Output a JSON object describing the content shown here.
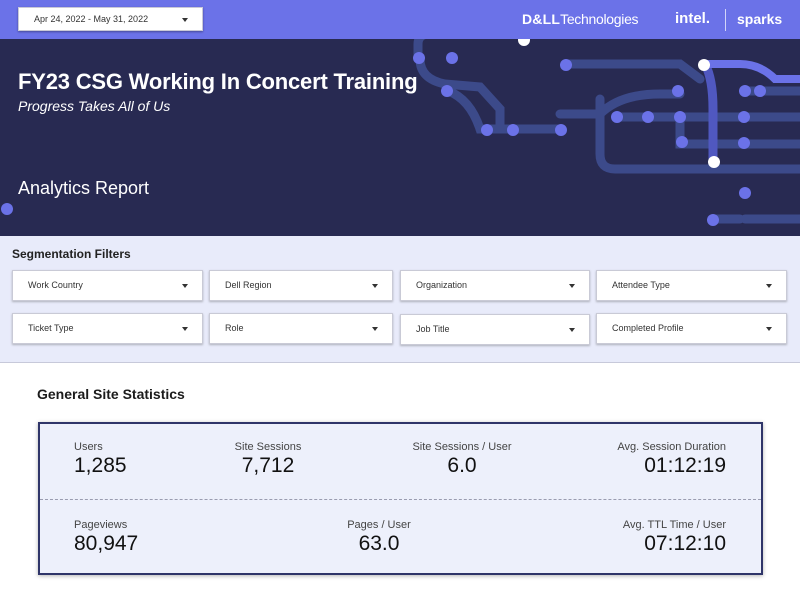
{
  "topbar": {
    "date_range": "Apr 24, 2022 - May 31, 2022",
    "brand_dell_bold": "D&LL",
    "brand_dell_rest": "Technologies",
    "brand_intel": "intel.",
    "brand_sparks": "sparks"
  },
  "hero": {
    "title": "FY23 CSG Working In Concert Training",
    "subtitle": "Progress Takes All of Us",
    "report": "Analytics Report"
  },
  "filters": {
    "title": "Segmentation Filters",
    "items": [
      "Work Country",
      "Dell Region",
      "Organization",
      "Attendee Type",
      "Ticket Type",
      "Role",
      "Job Title",
      "Completed Profile"
    ]
  },
  "stats": {
    "title": "General Site Statistics",
    "row1": [
      {
        "label": "Users",
        "value": "1,285"
      },
      {
        "label": "Site Sessions",
        "value": "7,712"
      },
      {
        "label": "Site Sessions / User",
        "value": "6.0"
      },
      {
        "label": "Avg. Session Duration",
        "value": "01:12:19"
      }
    ],
    "row2": [
      {
        "label": "Pageviews",
        "value": "80,947"
      },
      {
        "label": "Pages / User",
        "value": "63.0"
      },
      {
        "label": "Avg. TTL Time / User",
        "value": "07:12:10"
      }
    ]
  },
  "colors": {
    "topbar": "#6b72e8",
    "hero_bg": "#282a52",
    "accent_dot": "#6b72e8",
    "filters_bg": "#e8ebfa",
    "card_border": "#2f3569"
  }
}
